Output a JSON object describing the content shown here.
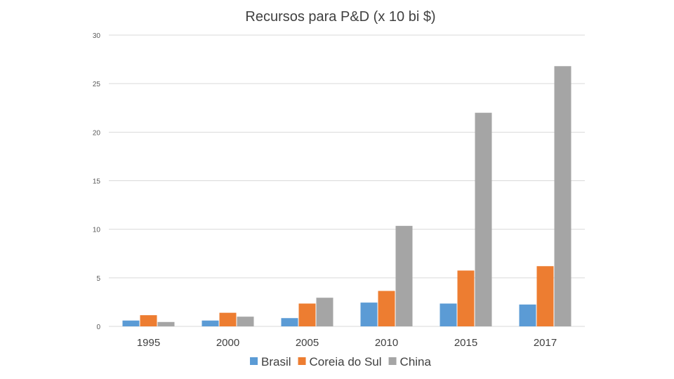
{
  "chart_data": {
    "type": "bar",
    "title": "Recursos para P&D (x 10 bi $)",
    "categories": [
      "1995",
      "2000",
      "2005",
      "2010",
      "2015",
      "2017"
    ],
    "series": [
      {
        "name": "Brasil",
        "color": "#5b9bd5",
        "values": [
          0.6,
          0.6,
          0.85,
          2.45,
          2.35,
          2.25
        ]
      },
      {
        "name": "Coreia do Sul",
        "color": "#ed7d31",
        "values": [
          1.15,
          1.4,
          2.35,
          3.65,
          5.75,
          6.2
        ]
      },
      {
        "name": "China",
        "color": "#a5a5a5",
        "values": [
          0.45,
          1.0,
          2.95,
          10.35,
          22.0,
          26.8
        ]
      }
    ],
    "ylim": [
      0,
      30
    ],
    "yticks": [
      "0",
      "5",
      "10",
      "15",
      "20",
      "25",
      "30"
    ],
    "grid": true,
    "legend_position": "bottom"
  }
}
